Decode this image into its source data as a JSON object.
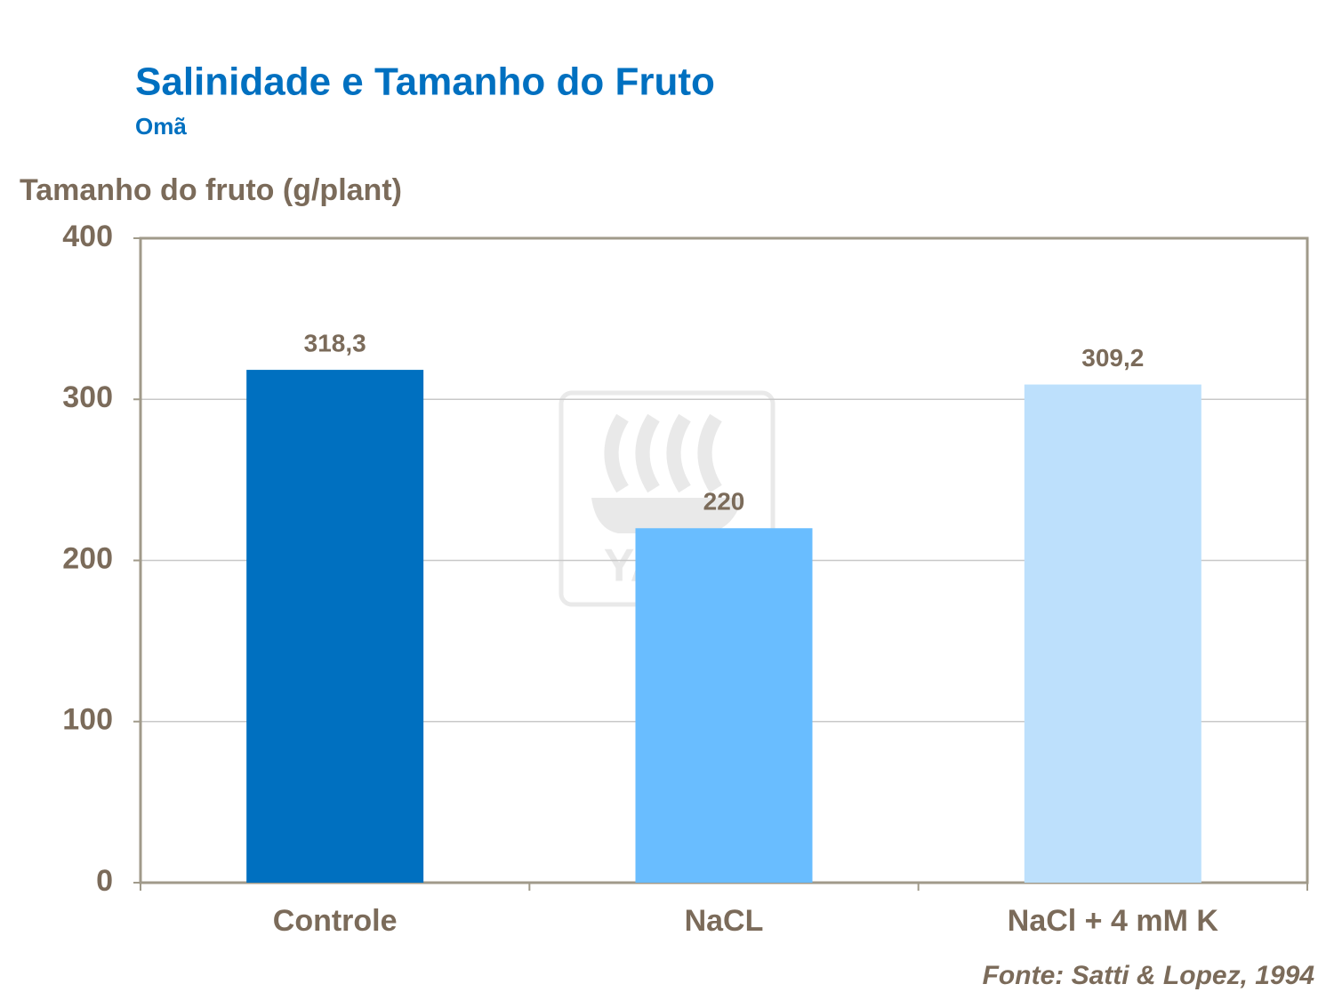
{
  "chart_data": {
    "type": "bar",
    "title": "Salinidade e Tamanho do Fruto",
    "subtitle": "Omã",
    "y_label": "Tamanho do fruto (g/plant)",
    "categories": [
      "Controle",
      "NaCL",
      "NaCl + 4 mM K"
    ],
    "values": [
      318.3,
      220,
      309.2
    ],
    "value_labels": [
      "318,3",
      "220",
      "309,2"
    ],
    "colors": [
      "#0070c0",
      "#69bdff",
      "#bde0fc"
    ],
    "ylim": [
      0,
      400
    ],
    "yticks": [
      0,
      100,
      200,
      300,
      400
    ],
    "grid": true,
    "source": "Fonte: Satti & Lopez, 1994",
    "watermark": "YARA"
  }
}
